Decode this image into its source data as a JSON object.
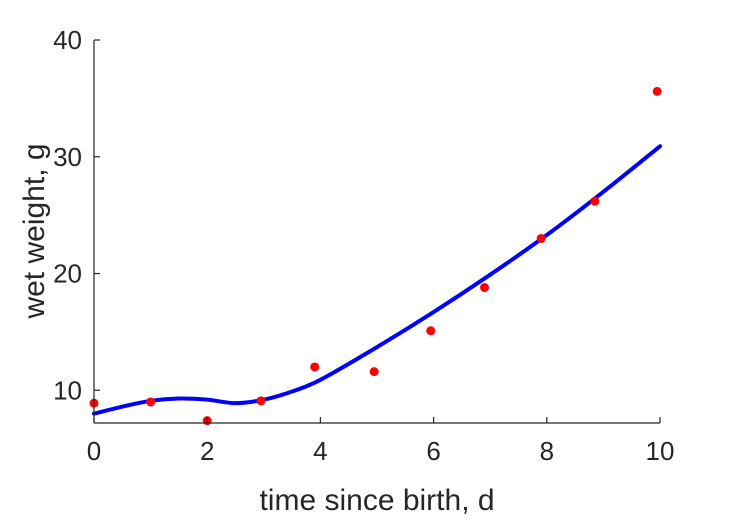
{
  "chart_data": {
    "type": "scatter",
    "xlabel": "time since birth, d",
    "ylabel": "wet weight, g",
    "xlim": [
      0,
      10
    ],
    "ylim": [
      7.2,
      40
    ],
    "x_ticks": [
      0,
      2,
      4,
      6,
      8,
      10
    ],
    "y_ticks": [
      10,
      20,
      30,
      40
    ],
    "x_tick_labels": [
      "0",
      "2",
      "4",
      "6",
      "8",
      "10"
    ],
    "y_tick_labels": [
      "10",
      "20",
      "30",
      "40"
    ],
    "grid": false,
    "legend": "none",
    "series": [
      {
        "type": "scatter",
        "color": "#ff0000",
        "x": [
          0.0,
          1.0,
          2.0,
          2.95,
          3.9,
          4.95,
          5.95,
          6.9,
          7.9,
          8.85,
          9.95
        ],
        "y": [
          8.9,
          9.0,
          7.4,
          9.1,
          12.0,
          11.6,
          15.1,
          18.8,
          23.0,
          26.2,
          35.6
        ]
      },
      {
        "type": "line",
        "color": "#0000ff",
        "x": [
          0.0,
          0.5,
          1.0,
          1.5,
          2.0,
          2.5,
          3.0,
          3.5,
          4.0,
          5.0,
          6.0,
          7.0,
          8.0,
          9.0,
          10.0
        ],
        "y": [
          8.0,
          8.6,
          9.1,
          9.3,
          9.2,
          8.9,
          9.2,
          9.9,
          10.9,
          13.7,
          16.7,
          19.9,
          23.3,
          27.0,
          30.9
        ]
      }
    ]
  }
}
